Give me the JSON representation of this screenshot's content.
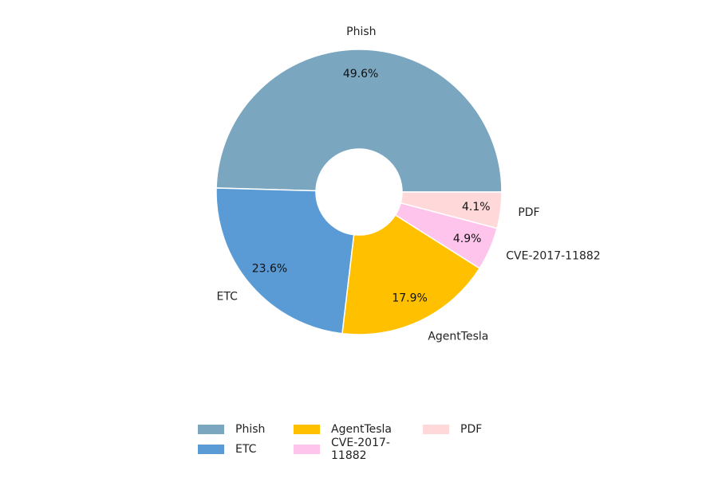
{
  "chart_data": {
    "type": "pie",
    "donut": true,
    "categories": [
      "Phish",
      "ETC",
      "AgentTesla",
      "CVE-2017-11882",
      "PDF"
    ],
    "values": [
      49.6,
      23.6,
      17.9,
      4.9,
      4.1
    ],
    "value_labels": [
      "49.6%",
      "23.6%",
      "17.9%",
      "4.9%",
      "4.1%"
    ],
    "colors": [
      "#7aa6c0",
      "#5b9bd5",
      "#ffc000",
      "#ffc4ec",
      "#ffd9d9"
    ],
    "start_angle_deg": 0,
    "direction": "counterclockwise",
    "legend_placement": "bottom"
  }
}
